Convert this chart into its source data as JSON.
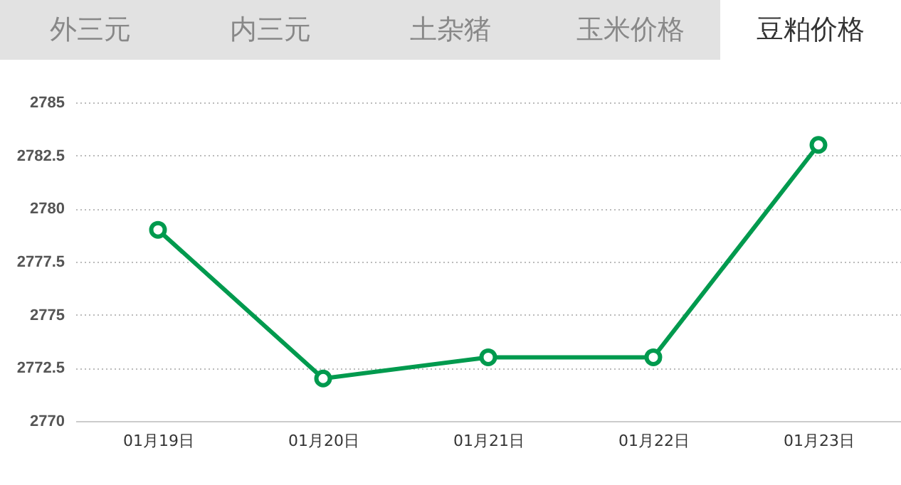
{
  "chart_data": {
    "type": "line",
    "annotations": [
      "外三元",
      "内三元",
      "土杂猪",
      "玉米价格",
      "豆粕价格"
    ],
    "categories": [
      "01月19日",
      "01月20日",
      "01月21日",
      "01月22日",
      "01月23日"
    ],
    "series": [
      {
        "color": "#009a4e",
        "values": [
          2779,
          2772,
          2773,
          2773,
          2783
        ]
      }
    ],
    "ylim": [
      2770,
      2785
    ],
    "yticks": [
      2770,
      2772.5,
      2775,
      2777.5,
      2780,
      2782.5,
      2785
    ],
    "grid": "y",
    "marker": "circle",
    "line_style": "solid"
  }
}
